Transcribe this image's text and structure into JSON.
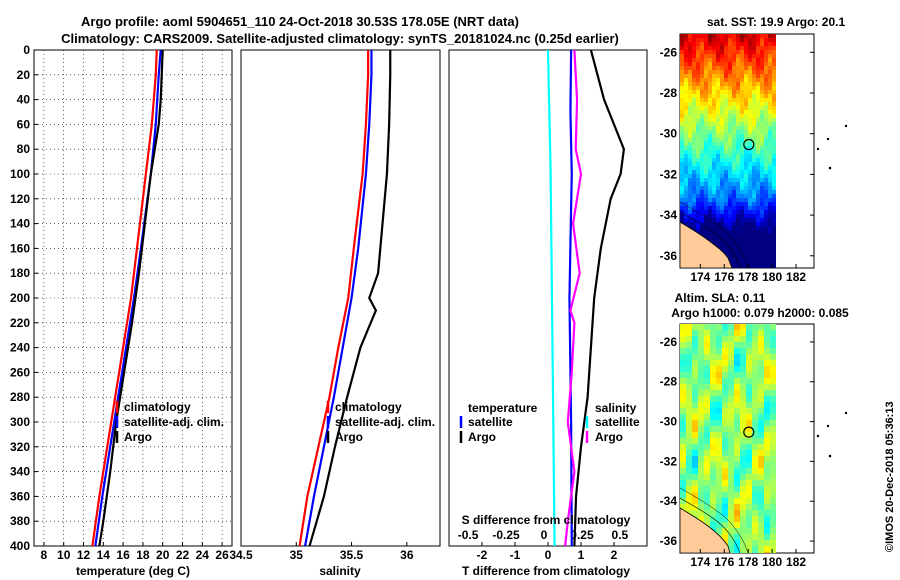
{
  "header": {
    "line1": "Argo profile: aoml 5904651_110 24-Oct-2018 30.53S 178.05E (NRT data)",
    "line2": "Climatology: CARS2009. Satellite-adjusted climatology: synTS_20181024.nc (0.25d earlier)"
  },
  "credit": "©IMOS 20-Dec-2018 05:36:13",
  "colors": {
    "climatology": "#ff0000",
    "satellite": "#0000ff",
    "argo": "#000000",
    "cyan": "#00ffff",
    "magenta": "#ff00ff"
  },
  "chart_data": [
    {
      "type": "line",
      "name": "temperature-profile",
      "xlabel": "temperature (deg C)",
      "ylabel": "",
      "xlim": [
        7,
        27
      ],
      "ylim": [
        0,
        400
      ],
      "xticks": [
        8,
        10,
        12,
        14,
        16,
        18,
        20,
        22,
        24,
        26
      ],
      "yticks": [
        0,
        20,
        40,
        60,
        80,
        100,
        120,
        140,
        160,
        180,
        200,
        220,
        240,
        260,
        280,
        300,
        320,
        340,
        360,
        380,
        400
      ],
      "grid": true,
      "legend": [
        "climatology",
        "satellite-adj. clim.",
        "Argo"
      ],
      "series": [
        {
          "name": "climatology",
          "depth": [
            0,
            20,
            60,
            100,
            160,
            200,
            240,
            280,
            320,
            360,
            400
          ],
          "values": [
            19.4,
            19.3,
            18.9,
            18.3,
            17.4,
            16.8,
            16.0,
            15.2,
            14.4,
            13.6,
            12.9
          ]
        },
        {
          "name": "satellite-adj. clim.",
          "depth": [
            0,
            20,
            60,
            100,
            160,
            200,
            240,
            280,
            320,
            360,
            400
          ],
          "values": [
            19.8,
            19.6,
            19.3,
            18.8,
            17.8,
            17.1,
            16.3,
            15.5,
            14.7,
            13.9,
            13.2
          ]
        },
        {
          "name": "Argo",
          "depth": [
            0,
            20,
            40,
            60,
            80,
            100,
            140,
            180,
            220,
            260,
            300,
            340,
            380,
            400
          ],
          "values": [
            20.0,
            19.9,
            19.8,
            19.6,
            19.2,
            18.8,
            18.2,
            17.6,
            16.9,
            16.1,
            15.3,
            14.7,
            14.0,
            13.6
          ]
        }
      ]
    },
    {
      "type": "line",
      "name": "salinity-profile",
      "xlabel": "salinity",
      "xlim": [
        34.5,
        36.3
      ],
      "ylim": [
        0,
        400
      ],
      "xticks": [
        34.5,
        35,
        35.5,
        36
      ],
      "xticklabels": [
        "34.5",
        "35",
        "35.5",
        "36"
      ],
      "legend": [
        "climatology",
        "satellite-adj. clim.",
        "Argo"
      ],
      "series": [
        {
          "name": "climatology",
          "depth": [
            0,
            20,
            60,
            100,
            160,
            200,
            240,
            280,
            320,
            360,
            400
          ],
          "values": [
            35.65,
            35.65,
            35.63,
            35.6,
            35.52,
            35.47,
            35.38,
            35.3,
            35.2,
            35.1,
            35.03
          ]
        },
        {
          "name": "satellite-adj. clim.",
          "depth": [
            0,
            20,
            60,
            100,
            160,
            200,
            240,
            280,
            320,
            360,
            400
          ],
          "values": [
            35.68,
            35.68,
            35.66,
            35.63,
            35.56,
            35.5,
            35.42,
            35.34,
            35.25,
            35.16,
            35.08
          ]
        },
        {
          "name": "Argo",
          "depth": [
            0,
            20,
            60,
            100,
            140,
            180,
            200,
            210,
            240,
            280,
            320,
            360,
            400
          ],
          "values": [
            35.85,
            35.85,
            35.84,
            35.82,
            35.78,
            35.74,
            35.66,
            35.72,
            35.58,
            35.46,
            35.35,
            35.25,
            35.12
          ]
        }
      ]
    },
    {
      "type": "line",
      "name": "difference-profile",
      "xlabel": "T difference from climatology",
      "xlabel2": "S difference from climatology",
      "xlim": [
        -3,
        3
      ],
      "ylim": [
        0,
        400
      ],
      "xticks": [
        -2,
        -1,
        0,
        1,
        2
      ],
      "xticklabels": [
        "-2",
        "-1",
        "0",
        "1",
        "2"
      ],
      "xticks2": [
        -0.5,
        -0.25,
        0,
        0.25,
        0.5
      ],
      "xticklabels2": [
        "-0.5",
        "-0.25",
        "0",
        "0.25",
        "0.5"
      ],
      "legend_temperature_title": "temperature",
      "legend_salinity_title": "salinity",
      "legend_temperature": [
        "satellite",
        "Argo"
      ],
      "legend_salinity": [
        "satellite",
        "Argo"
      ],
      "series": [
        {
          "name": "temperature satellite",
          "depth": [
            0,
            50,
            100,
            200,
            300,
            400
          ],
          "values": [
            0.7,
            0.68,
            0.72,
            0.65,
            0.7,
            0.72
          ]
        },
        {
          "name": "temperature Argo",
          "depth": [
            0,
            20,
            40,
            60,
            80,
            100,
            120,
            160,
            200,
            240,
            280,
            320,
            360,
            400
          ],
          "values": [
            1.3,
            1.5,
            1.7,
            2.0,
            2.3,
            2.2,
            1.9,
            1.6,
            1.4,
            1.3,
            1.2,
            1.0,
            0.85,
            0.8
          ]
        },
        {
          "name": "salinity satellite",
          "depth": [
            0,
            100,
            200,
            300,
            400
          ],
          "values": [
            0.0,
            0.02,
            0.03,
            0.04,
            0.05
          ]
        },
        {
          "name": "salinity Argo",
          "depth": [
            0,
            40,
            80,
            100,
            140,
            180,
            210,
            220,
            260,
            300,
            340,
            380,
            400
          ],
          "values": [
            0.2,
            0.22,
            0.21,
            0.25,
            0.19,
            0.24,
            0.17,
            0.2,
            0.18,
            0.15,
            0.2,
            0.15,
            0.13
          ]
        }
      ]
    },
    {
      "type": "heatmap",
      "name": "sst-map",
      "title": "sat. SST: 19.9 Argo: 20.1",
      "xticks": [
        174,
        176,
        178,
        180,
        182
      ],
      "yticks": [
        -26,
        -28,
        -30,
        -32,
        -34,
        -36
      ],
      "xlim": [
        172.3,
        183.5
      ],
      "ylim": [
        -36.6,
        -25.1
      ],
      "data_xmax": 180.3,
      "argo_position": {
        "lon": 178.05,
        "lat": -30.53
      }
    },
    {
      "type": "heatmap",
      "name": "sla-map",
      "title": "Altim. SLA: 0.11",
      "subtitle": "Argo h1000: 0.079 h2000: 0.085",
      "xticks": [
        174,
        176,
        178,
        180,
        182
      ],
      "yticks": [
        -26,
        -28,
        -30,
        -32,
        -34,
        -36
      ],
      "xlim": [
        172.3,
        183.5
      ],
      "ylim": [
        -36.6,
        -25.1
      ],
      "data_xmax": 180.3,
      "argo_position": {
        "lon": 178.05,
        "lat": -30.53
      }
    }
  ]
}
